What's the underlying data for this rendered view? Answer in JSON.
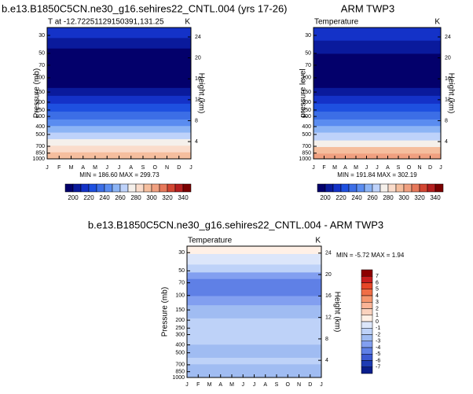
{
  "chart_data": [
    {
      "type": "contour",
      "title": "b.e13.B1850C5CN.ne30_g16.sehires22_CNTL.004 (yrs 17-26)",
      "subtitle": "T at -12.72251129150391,131.25",
      "unit": "K",
      "ylabel": "Pressure (mb)",
      "y2label": "Height (km)",
      "yscale": "log",
      "ylim": [
        1000,
        24
      ],
      "yticks": [
        30,
        50,
        70,
        100,
        150,
        200,
        250,
        300,
        400,
        500,
        700,
        850,
        1000
      ],
      "y2lim": [
        0.7,
        25.8
      ],
      "y2ticks": [
        4,
        8,
        12,
        16,
        20,
        24
      ],
      "categories": [
        "J",
        "F",
        "M",
        "A",
        "M",
        "J",
        "J",
        "A",
        "S",
        "O",
        "N",
        "D",
        "J"
      ],
      "stats": "MIN = 186.60 MAX = 299.73",
      "colorbar": {
        "orientation": "horizontal",
        "labels": [
          200,
          220,
          240,
          260,
          280,
          300,
          320,
          340
        ],
        "colors": [
          "#03006b",
          "#0a1a9c",
          "#1432c8",
          "#1e50e0",
          "#3c6ee6",
          "#5a8cf0",
          "#8cb4f5",
          "#bed2fa",
          "#f5f0eb",
          "#fadccb",
          "#f5be9e",
          "#f0a080",
          "#e6785a",
          "#d24632",
          "#b41e1e",
          "#7a0000"
        ]
      }
    },
    {
      "type": "contour",
      "title": "ARM TWP3",
      "subtitle": "Temperature",
      "unit": "K",
      "ylabel": "pressure level",
      "y2label": "Height (km)",
      "yscale": "log",
      "ylim": [
        1000,
        24
      ],
      "yticks": [
        30,
        50,
        70,
        100,
        150,
        200,
        250,
        300,
        400,
        500,
        700,
        850,
        1000
      ],
      "y2lim": [
        0.7,
        25.8
      ],
      "y2ticks": [
        4,
        8,
        12,
        16,
        20,
        24
      ],
      "categories": [
        "J",
        "F",
        "M",
        "A",
        "M",
        "J",
        "J",
        "A",
        "S",
        "O",
        "N",
        "D",
        "J"
      ],
      "stats": "MIN = 191.84 MAX = 302.19",
      "colorbar": {
        "orientation": "horizontal",
        "labels": [
          200,
          220,
          240,
          260,
          280,
          300,
          320,
          340
        ],
        "colors": [
          "#03006b",
          "#0a1a9c",
          "#1432c8",
          "#1e50e0",
          "#3c6ee6",
          "#5a8cf0",
          "#8cb4f5",
          "#bed2fa",
          "#f5f0eb",
          "#fadccb",
          "#f5be9e",
          "#f0a080",
          "#e6785a",
          "#d24632",
          "#b41e1e",
          "#7a0000"
        ]
      }
    },
    {
      "type": "contour",
      "title": "b.e13.B1850C5CN.ne30_g16.sehires22_CNTL.004 - ARM TWP3",
      "subtitle": "Temperature",
      "unit": "K",
      "ylabel": "Pressure (mb)",
      "y2label": "Height (km)",
      "yscale": "log",
      "ylim": [
        1000,
        25
      ],
      "yticks": [
        30,
        50,
        70,
        100,
        150,
        200,
        250,
        300,
        400,
        500,
        700,
        850,
        1000
      ],
      "y2lim": [
        0.8,
        25.3
      ],
      "y2ticks": [
        4,
        8,
        12,
        16,
        20,
        24
      ],
      "categories": [
        "J",
        "F",
        "M",
        "A",
        "M",
        "J",
        "J",
        "A",
        "S",
        "O",
        "N",
        "D",
        "J"
      ],
      "stats": "MIN = -5.72 MAX =  1.94",
      "colorbar": {
        "orientation": "vertical",
        "labels": [
          7,
          6,
          5,
          4,
          3,
          2,
          1,
          0,
          -1,
          -2,
          -3,
          -4,
          -5,
          -6,
          -7
        ],
        "colors": [
          "#8c0000",
          "#c81e1e",
          "#e64628",
          "#f06e46",
          "#f5966e",
          "#fab496",
          "#fad2be",
          "#fff0e6",
          "#dce6fa",
          "#bed2f8",
          "#a0bcf2",
          "#829ff0",
          "#5f80e6",
          "#3c5ad2",
          "#1e3cb4",
          "#0a1e8c"
        ]
      }
    }
  ]
}
